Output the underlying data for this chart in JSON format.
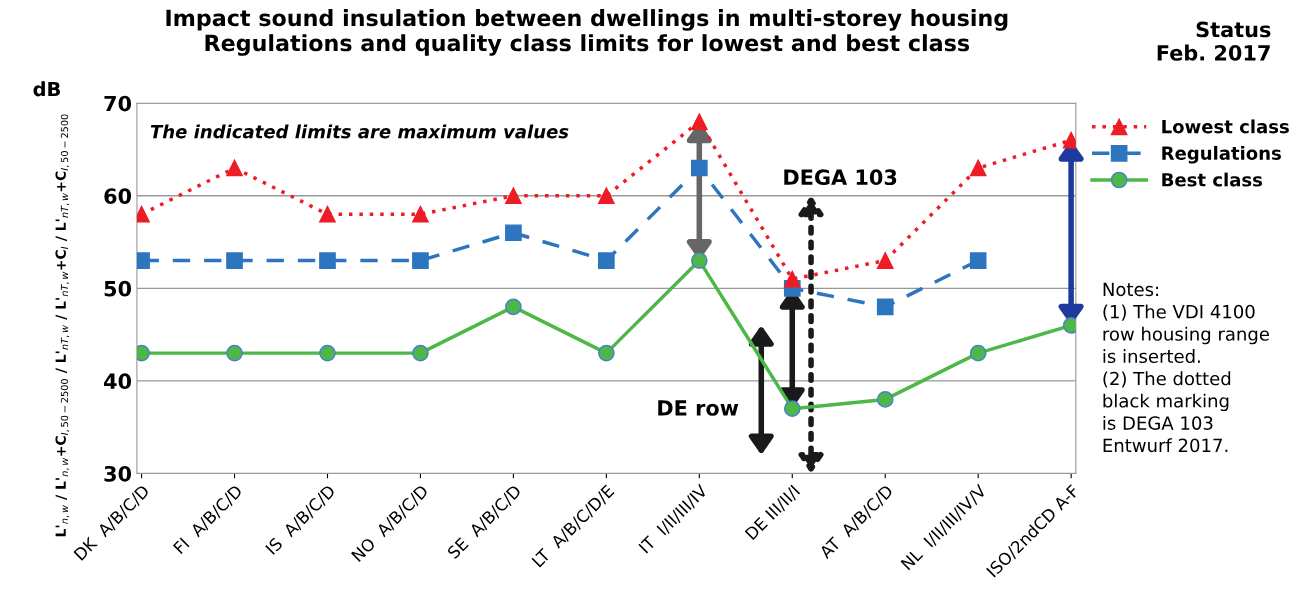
{
  "chart_data": {
    "type": "line",
    "title": "Impact sound insulation between dwellings in multi-storey housing\nRegulations and quality class limits for lowest and best class",
    "ylabel": "L'$_{n,w}$ / L'$_{n,w}$+C$_{I,50−2500}$ / L'$_{nT,w}$ / L'$_{nT,w}$+C$_{I}$ / L'$_{nT,w}$+C$_{I,50−2500}$",
    "categories": [
      "DK  A/B/C/D",
      "FI  A/B/C/D",
      "IS  A/B/C/D",
      "NO  A/B/C/D",
      "SE  A/B/C/D",
      "LT  A/B/C/D/E",
      "IT  I/II/III/IV",
      "DE III/II/I",
      "AT  A/B/C/D",
      "NL  I/II/III/IV/V",
      "ISO/2ndCD A-F"
    ],
    "series": [
      {
        "name": "Lowest class",
        "color": "#ee1c25",
        "marker": "triangle",
        "line_style": "dotted",
        "values": [
          58,
          63,
          58,
          58,
          60,
          60,
          68,
          51,
          53,
          63,
          66
        ]
      },
      {
        "name": "Regulations",
        "color": "#2e75c0",
        "marker": "square",
        "line_style": "dashed",
        "values": [
          53,
          53,
          53,
          53,
          56,
          53,
          63,
          50,
          48,
          53,
          null
        ]
      },
      {
        "name": "Best class",
        "color": "#4db848",
        "marker": "circle",
        "line_style": "solid",
        "values": [
          43,
          43,
          43,
          43,
          48,
          43,
          53,
          37,
          38,
          43,
          46
        ]
      }
    ],
    "ylim": [
      30,
      70
    ],
    "yticks": [
      30,
      40,
      50,
      60,
      70
    ],
    "grid": "y",
    "legend": "top right",
    "annotations": [
      "dB",
      "The indicated limits are maximum values",
      "Status\nFeb. 2017",
      "Notes:\n(1) The VDI 4100\nrow housing range\nis inserted.\n(2) The dotted\nblack marking\nis DEGA 103\nEntwurf 2017.",
      "DE row",
      "DEGA 103"
    ]
  }
}
